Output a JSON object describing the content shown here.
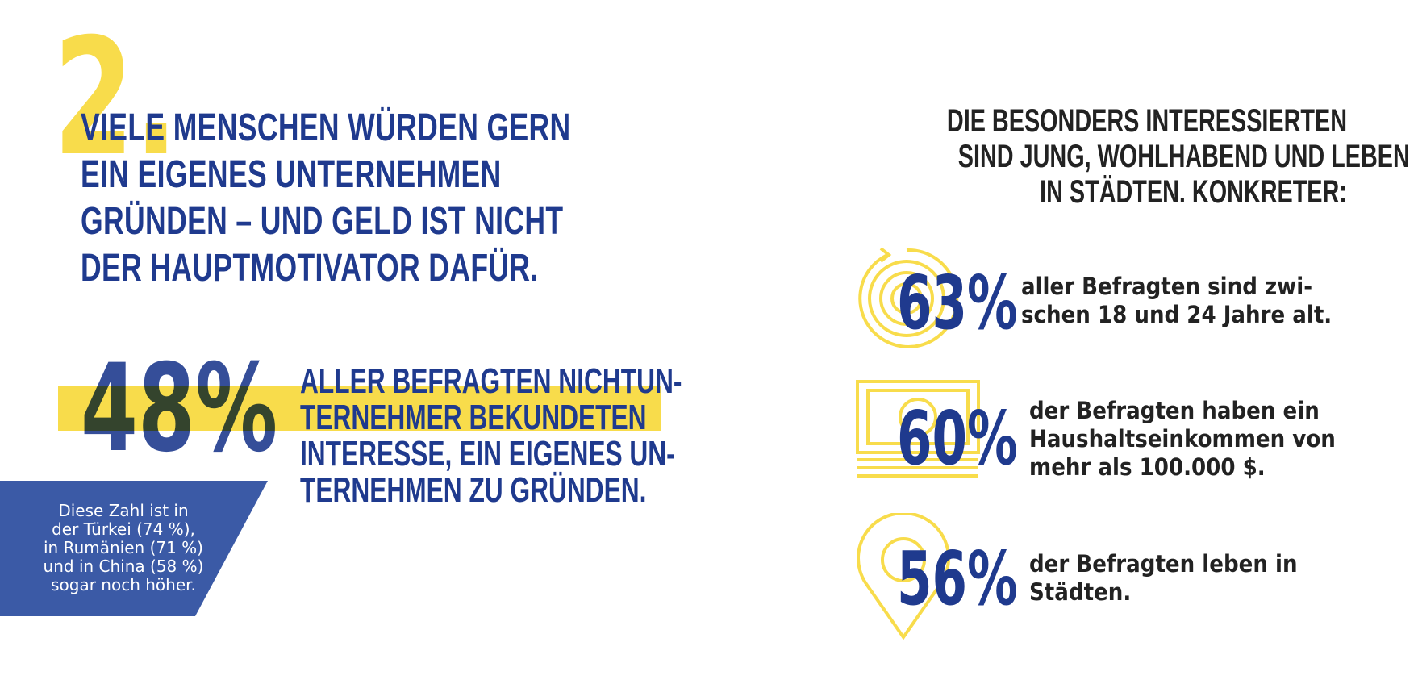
{
  "section_number": "2.",
  "headline": {
    "lines": [
      "VIELE MENSCHEN WÜRDEN GERN",
      "EIN EIGENES UNTERNEHMEN",
      "GRÜNDEN – UND GELD IST NICHT",
      "DER HAUPTMOTIVATOR DAFÜR."
    ]
  },
  "main_stat": {
    "value": "48%",
    "text_lines": [
      "ALLER BEFRAGTEN NICHTUN-",
      "TERNEHMER BEKUNDETEN",
      "INTERESSE, EIN EIGENES UN-",
      "TERNEHMEN ZU GRÜNDEN."
    ]
  },
  "note": {
    "lines": [
      "Diese Zahl ist in",
      "der Türkei (74 %),",
      "in Rumänien (71 %)",
      "und in China (58 %)",
      "sogar noch höher."
    ]
  },
  "right_heading": {
    "lines": [
      "DIE BESONDERS INTERESSIERTEN",
      "SIND JUNG, WOHLHABEND UND LEBEN",
      "IN STÄDTEN. KONKRETER:"
    ]
  },
  "stats": [
    {
      "icon": "target-icon",
      "value": "63%",
      "lines": [
        "aller Befragten sind zwi-",
        "schen 18 und 24 Jahre alt."
      ]
    },
    {
      "icon": "banknote-icon",
      "value": "60%",
      "lines": [
        "der Befragten haben ein",
        "Haushaltseinkommen von",
        "mehr als 100.000 $."
      ]
    },
    {
      "icon": "map-pin-icon",
      "value": "56%",
      "lines": [
        "der Befragten leben in",
        "Städten."
      ]
    }
  ],
  "colors": {
    "navy": "#1f3a8e",
    "yellow": "#f8dc4b",
    "note_blue": "#3b5aa6",
    "dark_text": "#222222"
  }
}
